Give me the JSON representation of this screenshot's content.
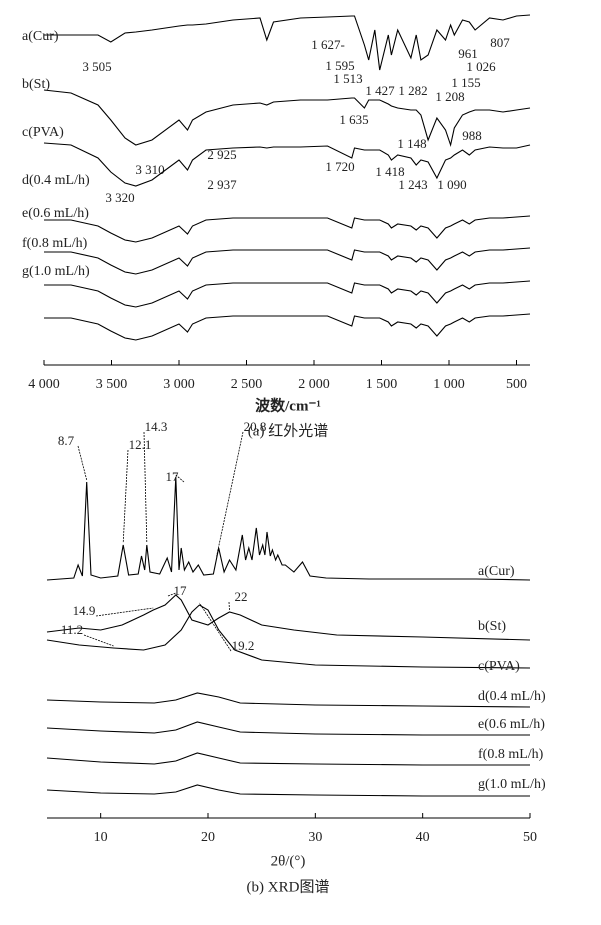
{
  "chart_data": [
    {
      "type": "line",
      "xlabel": "波数/cm⁻¹",
      "caption": "(a) 红外光谱",
      "color": "#000000",
      "xlim": [
        4000,
        400
      ],
      "ylim": [
        0,
        355
      ],
      "xticks": [
        {
          "value": 4000,
          "label": "4 000"
        },
        {
          "value": 3500,
          "label": "3 500"
        },
        {
          "value": 3000,
          "label": "3 000"
        },
        {
          "value": 2500,
          "label": "2 500"
        },
        {
          "value": 2000,
          "label": "2 000"
        },
        {
          "value": 1500,
          "label": "1 500"
        },
        {
          "value": 1000,
          "label": "1 000"
        },
        500
      ],
      "x": [
        4000,
        3800,
        3600,
        3505,
        3400,
        3320,
        3200,
        3000,
        2937,
        2900,
        2800,
        2600,
        2400,
        2350,
        2300,
        2100,
        1900,
        1720,
        1700,
        1627,
        1595,
        1550,
        1513,
        1450,
        1427,
        1380,
        1282,
        1243,
        1208,
        1155,
        1090,
        1026,
        988,
        961,
        900,
        850,
        807,
        700,
        600,
        500,
        400
      ],
      "series": [
        {
          "name": "a(Cur)",
          "values": [
            330,
            330,
            330,
            323,
            332,
            333,
            335,
            339,
            340,
            340,
            341,
            345,
            347,
            325,
            343,
            347,
            348,
            349,
            349,
            320,
            305,
            335,
            295,
            330,
            310,
            335,
            307,
            330,
            305,
            310,
            335,
            325,
            340,
            330,
            345,
            343,
            335,
            347,
            345,
            349,
            350
          ],
          "peaks": [
            {
              "value": 3505,
              "label": "3 505"
            },
            {
              "value": 1627,
              "label": "1 627-"
            },
            {
              "value": 1595,
              "label": "1 595"
            },
            {
              "value": 1513,
              "label": "1 513"
            },
            {
              "value": 1427,
              "label": "1 427"
            },
            {
              "value": 1282,
              "label": "1 282"
            },
            {
              "value": 1208,
              "label": "1 208"
            },
            {
              "value": 1155,
              "label": "1 155"
            },
            {
              "value": 1026,
              "label": "1 026"
            },
            961,
            807
          ]
        },
        {
          "name": "b(St)",
          "values": [
            275,
            272,
            260,
            245,
            227,
            220,
            225,
            245,
            235,
            245,
            253,
            260,
            262,
            260,
            263,
            265,
            265,
            267,
            267,
            257,
            265,
            265,
            265,
            261,
            259,
            257,
            255,
            255,
            250,
            225,
            247,
            235,
            220,
            237,
            250,
            253,
            255,
            255,
            253,
            255,
            257
          ],
          "peaks": [
            {
              "value": 3310,
              "label": "3 310"
            },
            {
              "value": 2925,
              "label": "2 925"
            },
            {
              "value": 1635,
              "label": "1 635"
            },
            {
              "value": 1148,
              "label": "1 148"
            },
            988
          ]
        },
        {
          "name": "c(PVA)",
          "values": [
            222,
            220,
            207,
            193,
            182,
            179,
            185,
            205,
            195,
            205,
            215,
            217,
            218,
            217,
            218,
            218,
            219,
            207,
            217,
            215,
            215,
            215,
            215,
            210,
            205,
            210,
            207,
            200,
            205,
            203,
            187,
            205,
            207,
            210,
            215,
            210,
            215,
            218,
            217,
            217,
            220
          ],
          "peaks": [
            {
              "value": 3320,
              "label": "3 320"
            },
            {
              "value": 2937,
              "label": "2 937"
            },
            {
              "value": 1720,
              "label": "1 720"
            },
            {
              "value": 1418,
              "label": "1 418"
            },
            {
              "value": 1243,
              "label": "1 243"
            },
            {
              "value": 1090,
              "label": "1 090"
            }
          ]
        },
        {
          "name": "d(0.4 mL/h)",
          "values": [
            145,
            145,
            139,
            132,
            125,
            123,
            127,
            139,
            131,
            139,
            145,
            147,
            147,
            147,
            147,
            147,
            147,
            137,
            147,
            145,
            145,
            145,
            145,
            141,
            137,
            141,
            139,
            135,
            139,
            137,
            127,
            137,
            139,
            141,
            145,
            141,
            145,
            147,
            147,
            148,
            149
          ]
        },
        {
          "name": "e(0.6 mL/h)",
          "values": [
            113,
            113,
            107,
            100,
            93,
            91,
            95,
            107,
            99,
            107,
            113,
            115,
            115,
            115,
            115,
            115,
            115,
            105,
            115,
            113,
            113,
            113,
            113,
            109,
            105,
            109,
            107,
            103,
            107,
            105,
            95,
            105,
            107,
            109,
            113,
            109,
            113,
            115,
            115,
            116,
            117
          ]
        },
        {
          "name": "f(0.8 mL/h)",
          "values": [
            80,
            80,
            74,
            67,
            60,
            58,
            62,
            74,
            66,
            74,
            80,
            82,
            82,
            82,
            82,
            82,
            82,
            72,
            82,
            80,
            80,
            80,
            80,
            76,
            72,
            76,
            74,
            70,
            74,
            72,
            62,
            72,
            74,
            76,
            80,
            76,
            80,
            82,
            82,
            83,
            84
          ]
        },
        {
          "name": "g(1.0 mL/h)",
          "values": [
            47,
            47,
            41,
            34,
            27,
            25,
            29,
            41,
            33,
            41,
            47,
            49,
            49,
            49,
            49,
            49,
            49,
            39,
            49,
            47,
            47,
            47,
            47,
            43,
            39,
            43,
            41,
            37,
            41,
            39,
            29,
            39,
            41,
            43,
            47,
            43,
            47,
            49,
            49,
            50,
            51
          ]
        }
      ]
    },
    {
      "type": "line",
      "xlabel": "2θ/(°)",
      "caption": "(b) XRD图谱",
      "color": "#000000",
      "xlim": [
        5,
        50
      ],
      "ylim": [
        0,
        350
      ],
      "xticks": [
        10,
        20,
        30,
        40,
        50
      ],
      "series": [
        {
          "name": "a(Cur)",
          "x": [
            5,
            7.5,
            7.9,
            8.3,
            8.7,
            9.1,
            10,
            11.6,
            12.1,
            12.6,
            13.5,
            13.8,
            14.1,
            14.3,
            14.6,
            15.5,
            16.2,
            16.6,
            17,
            17.3,
            17.5,
            17.8,
            18.2,
            18.6,
            19.1,
            19.6,
            20.5,
            21,
            21.5,
            22,
            22.6,
            23.2,
            23.5,
            23.8,
            24.1,
            24.5,
            24.8,
            25.1,
            25.3,
            25.5,
            25.8,
            26,
            26.3,
            26.5,
            26.9,
            27.2,
            28,
            28.8,
            29.5,
            31,
            35,
            40,
            45,
            50
          ],
          "values": [
            238,
            240,
            253,
            242,
            336,
            243,
            240,
            242,
            273,
            243,
            244,
            262,
            248,
            273,
            246,
            244,
            260,
            246,
            341,
            248,
            270,
            248,
            256,
            246,
            253,
            243,
            244,
            270,
            246,
            258,
            248,
            283,
            258,
            270,
            258,
            290,
            263,
            273,
            263,
            286,
            262,
            268,
            258,
            263,
            253,
            253,
            246,
            256,
            242,
            240,
            239,
            239,
            239,
            238
          ],
          "peaks": [
            8.7,
            12.1,
            14.3,
            17,
            20.8
          ]
        },
        {
          "name": "b(St)",
          "x": [
            5,
            8,
            10,
            12,
            14,
            14.9,
            16,
            17,
            17.5,
            18.5,
            20,
            21,
            22,
            23,
            25,
            28,
            32,
            40,
            50
          ],
          "values": [
            186,
            190,
            188,
            193,
            203,
            208,
            213,
            223,
            218,
            198,
            193,
            200,
            206,
            203,
            193,
            188,
            183,
            181,
            178
          ],
          "peaks": [
            14.9,
            17,
            22
          ]
        },
        {
          "name": "c(PVA)",
          "x": [
            5,
            8,
            11.2,
            14,
            16,
            17.5,
            18.5,
            19.2,
            20,
            21,
            22.5,
            25,
            30,
            40,
            50
          ],
          "values": [
            178,
            173,
            170,
            168,
            173,
            188,
            206,
            213,
            208,
            188,
            168,
            158,
            153,
            151,
            150
          ],
          "peaks": [
            11.2,
            19.2
          ]
        },
        {
          "name": "d(0.4 mL/h)",
          "x": [
            5,
            10,
            15,
            17,
            19,
            21,
            23,
            30,
            40,
            50
          ],
          "values": [
            118,
            116,
            115,
            118,
            125,
            121,
            115,
            113,
            112,
            111
          ]
        },
        {
          "name": "e(0.6 mL/h)",
          "x": [
            5,
            10,
            15,
            17,
            19,
            21,
            23,
            30,
            40,
            50
          ],
          "values": [
            90,
            87,
            85,
            88,
            96,
            91,
            86,
            84,
            83,
            83
          ]
        },
        {
          "name": "f(0.8 mL/h)",
          "x": [
            5,
            10,
            15,
            17,
            19,
            21,
            23,
            30,
            40,
            50
          ],
          "values": [
            60,
            56,
            54,
            57,
            65,
            60,
            55,
            54,
            53,
            53
          ]
        },
        {
          "name": "g(1.0 mL/h)",
          "x": [
            5,
            10,
            15,
            17,
            19,
            21,
            23,
            30,
            40,
            50
          ],
          "values": [
            28,
            25,
            24,
            26,
            33,
            28,
            24,
            23,
            22,
            22
          ]
        }
      ]
    }
  ]
}
